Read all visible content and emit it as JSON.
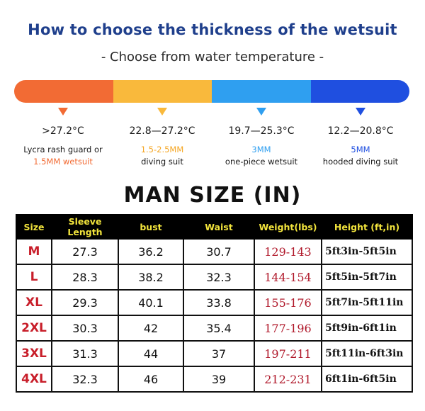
{
  "header": {
    "title": "How to choose the thickness of the wetsuit",
    "subtitle": "- Choose from water temperature -"
  },
  "temperature_bar": {
    "colors": [
      "#f26b34",
      "#f9b93c",
      "#2f9ff0",
      "#1f4fe0"
    ]
  },
  "temperature_columns": [
    {
      "range": ">27.2°C",
      "line1": "Lycra rash guard or",
      "line2": "1.5MM wetsuit",
      "arrow_color": "#f26b34",
      "highlight_color": "#f26b34",
      "highlight_line": 2
    },
    {
      "range": "22.8—27.2°C",
      "line1": "1.5-2.5MM",
      "line2": "diving suit",
      "arrow_color": "#f9b93c",
      "highlight_color": "#f5a623",
      "highlight_line": 1
    },
    {
      "range": "19.7—25.3°C",
      "line1": "3MM",
      "line2": "one-piece wetsuit",
      "arrow_color": "#2f9ff0",
      "highlight_color": "#2f9ff0",
      "highlight_line": 1
    },
    {
      "range": "12.2—20.8°C",
      "line1": "5MM",
      "line2": "hooded diving suit",
      "arrow_color": "#1f4fe0",
      "highlight_color": "#1f4fe0",
      "highlight_line": 1
    }
  ],
  "size_chart": {
    "title": "MAN SIZE (IN)",
    "columns": [
      "Size",
      "Sleeve Length",
      "bust",
      "Waist",
      "Weight(lbs)",
      "Height (ft,in)"
    ],
    "rows": [
      {
        "size": "M",
        "sleeve": "27.3",
        "bust": "36.2",
        "waist": "30.7",
        "weight": "129-143",
        "height": "5ft3in-5ft5in"
      },
      {
        "size": "L",
        "sleeve": "28.3",
        "bust": "38.2",
        "waist": "32.3",
        "weight": "144-154",
        "height": "5ft5in-5ft7in"
      },
      {
        "size": "XL",
        "sleeve": "29.3",
        "bust": "40.1",
        "waist": "33.8",
        "weight": "155-176",
        "height": "5ft7in-5ft11in"
      },
      {
        "size": "2XL",
        "sleeve": "30.3",
        "bust": "42",
        "waist": "35.4",
        "weight": "177-196",
        "height": "5ft9in-6ft1in"
      },
      {
        "size": "3XL",
        "sleeve": "31.3",
        "bust": "44",
        "waist": "37",
        "weight": "197-211",
        "height": "5ft11in-6ft3in"
      },
      {
        "size": "4XL",
        "sleeve": "32.3",
        "bust": "46",
        "waist": "39",
        "weight": "212-231",
        "height": "6ft1in-6ft5in"
      }
    ]
  }
}
